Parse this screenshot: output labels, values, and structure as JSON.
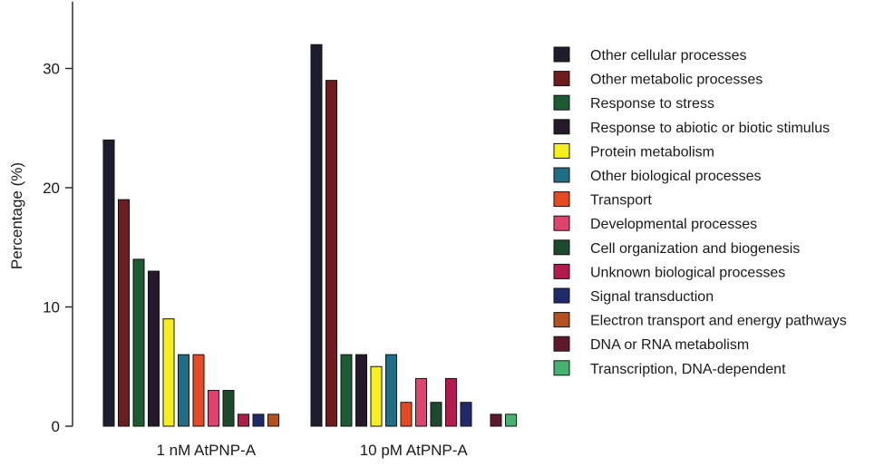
{
  "chart_data": {
    "type": "bar",
    "ylabel": "Percentage (%)",
    "ylim": [
      0,
      35
    ],
    "yticks": [
      0,
      10,
      20,
      30
    ],
    "legend_position": "right",
    "categories": [
      {
        "name": "Other cellular processes",
        "color": "#1c1f2b"
      },
      {
        "name": "Other metabolic processes",
        "color": "#6e1c1e"
      },
      {
        "name": "Response to stress",
        "color": "#1d5b32"
      },
      {
        "name": "Response to abiotic or biotic stimulus",
        "color": "#241a2c"
      },
      {
        "name": "Protein metabolism",
        "color": "#f5ef1e"
      },
      {
        "name": "Other biological processes",
        "color": "#1f6e86"
      },
      {
        "name": "Transport",
        "color": "#e64a23"
      },
      {
        "name": "Developmental processes",
        "color": "#e0446e"
      },
      {
        "name": "Cell organization and biogenesis",
        "color": "#1b4a2d"
      },
      {
        "name": "Unknown biological processes",
        "color": "#b51a4c"
      },
      {
        "name": "Signal transduction",
        "color": "#1f2a6c"
      },
      {
        "name": "Electron transport and energy pathways",
        "color": "#b5501f"
      },
      {
        "name": "DNA or RNA metabolism",
        "color": "#5e1a2a"
      },
      {
        "name": "Transcription, DNA-dependent",
        "color": "#45b270"
      }
    ],
    "groups": [
      {
        "name": "1 nM AtPNP-A",
        "values": [
          24,
          19,
          14,
          13,
          9,
          6,
          6,
          3,
          3,
          1,
          1,
          1,
          0,
          0
        ]
      },
      {
        "name": "10 pM AtPNP-A",
        "values": [
          32,
          29,
          6,
          6,
          5,
          6,
          2,
          4,
          2,
          4,
          2,
          0,
          1,
          1
        ]
      }
    ]
  }
}
